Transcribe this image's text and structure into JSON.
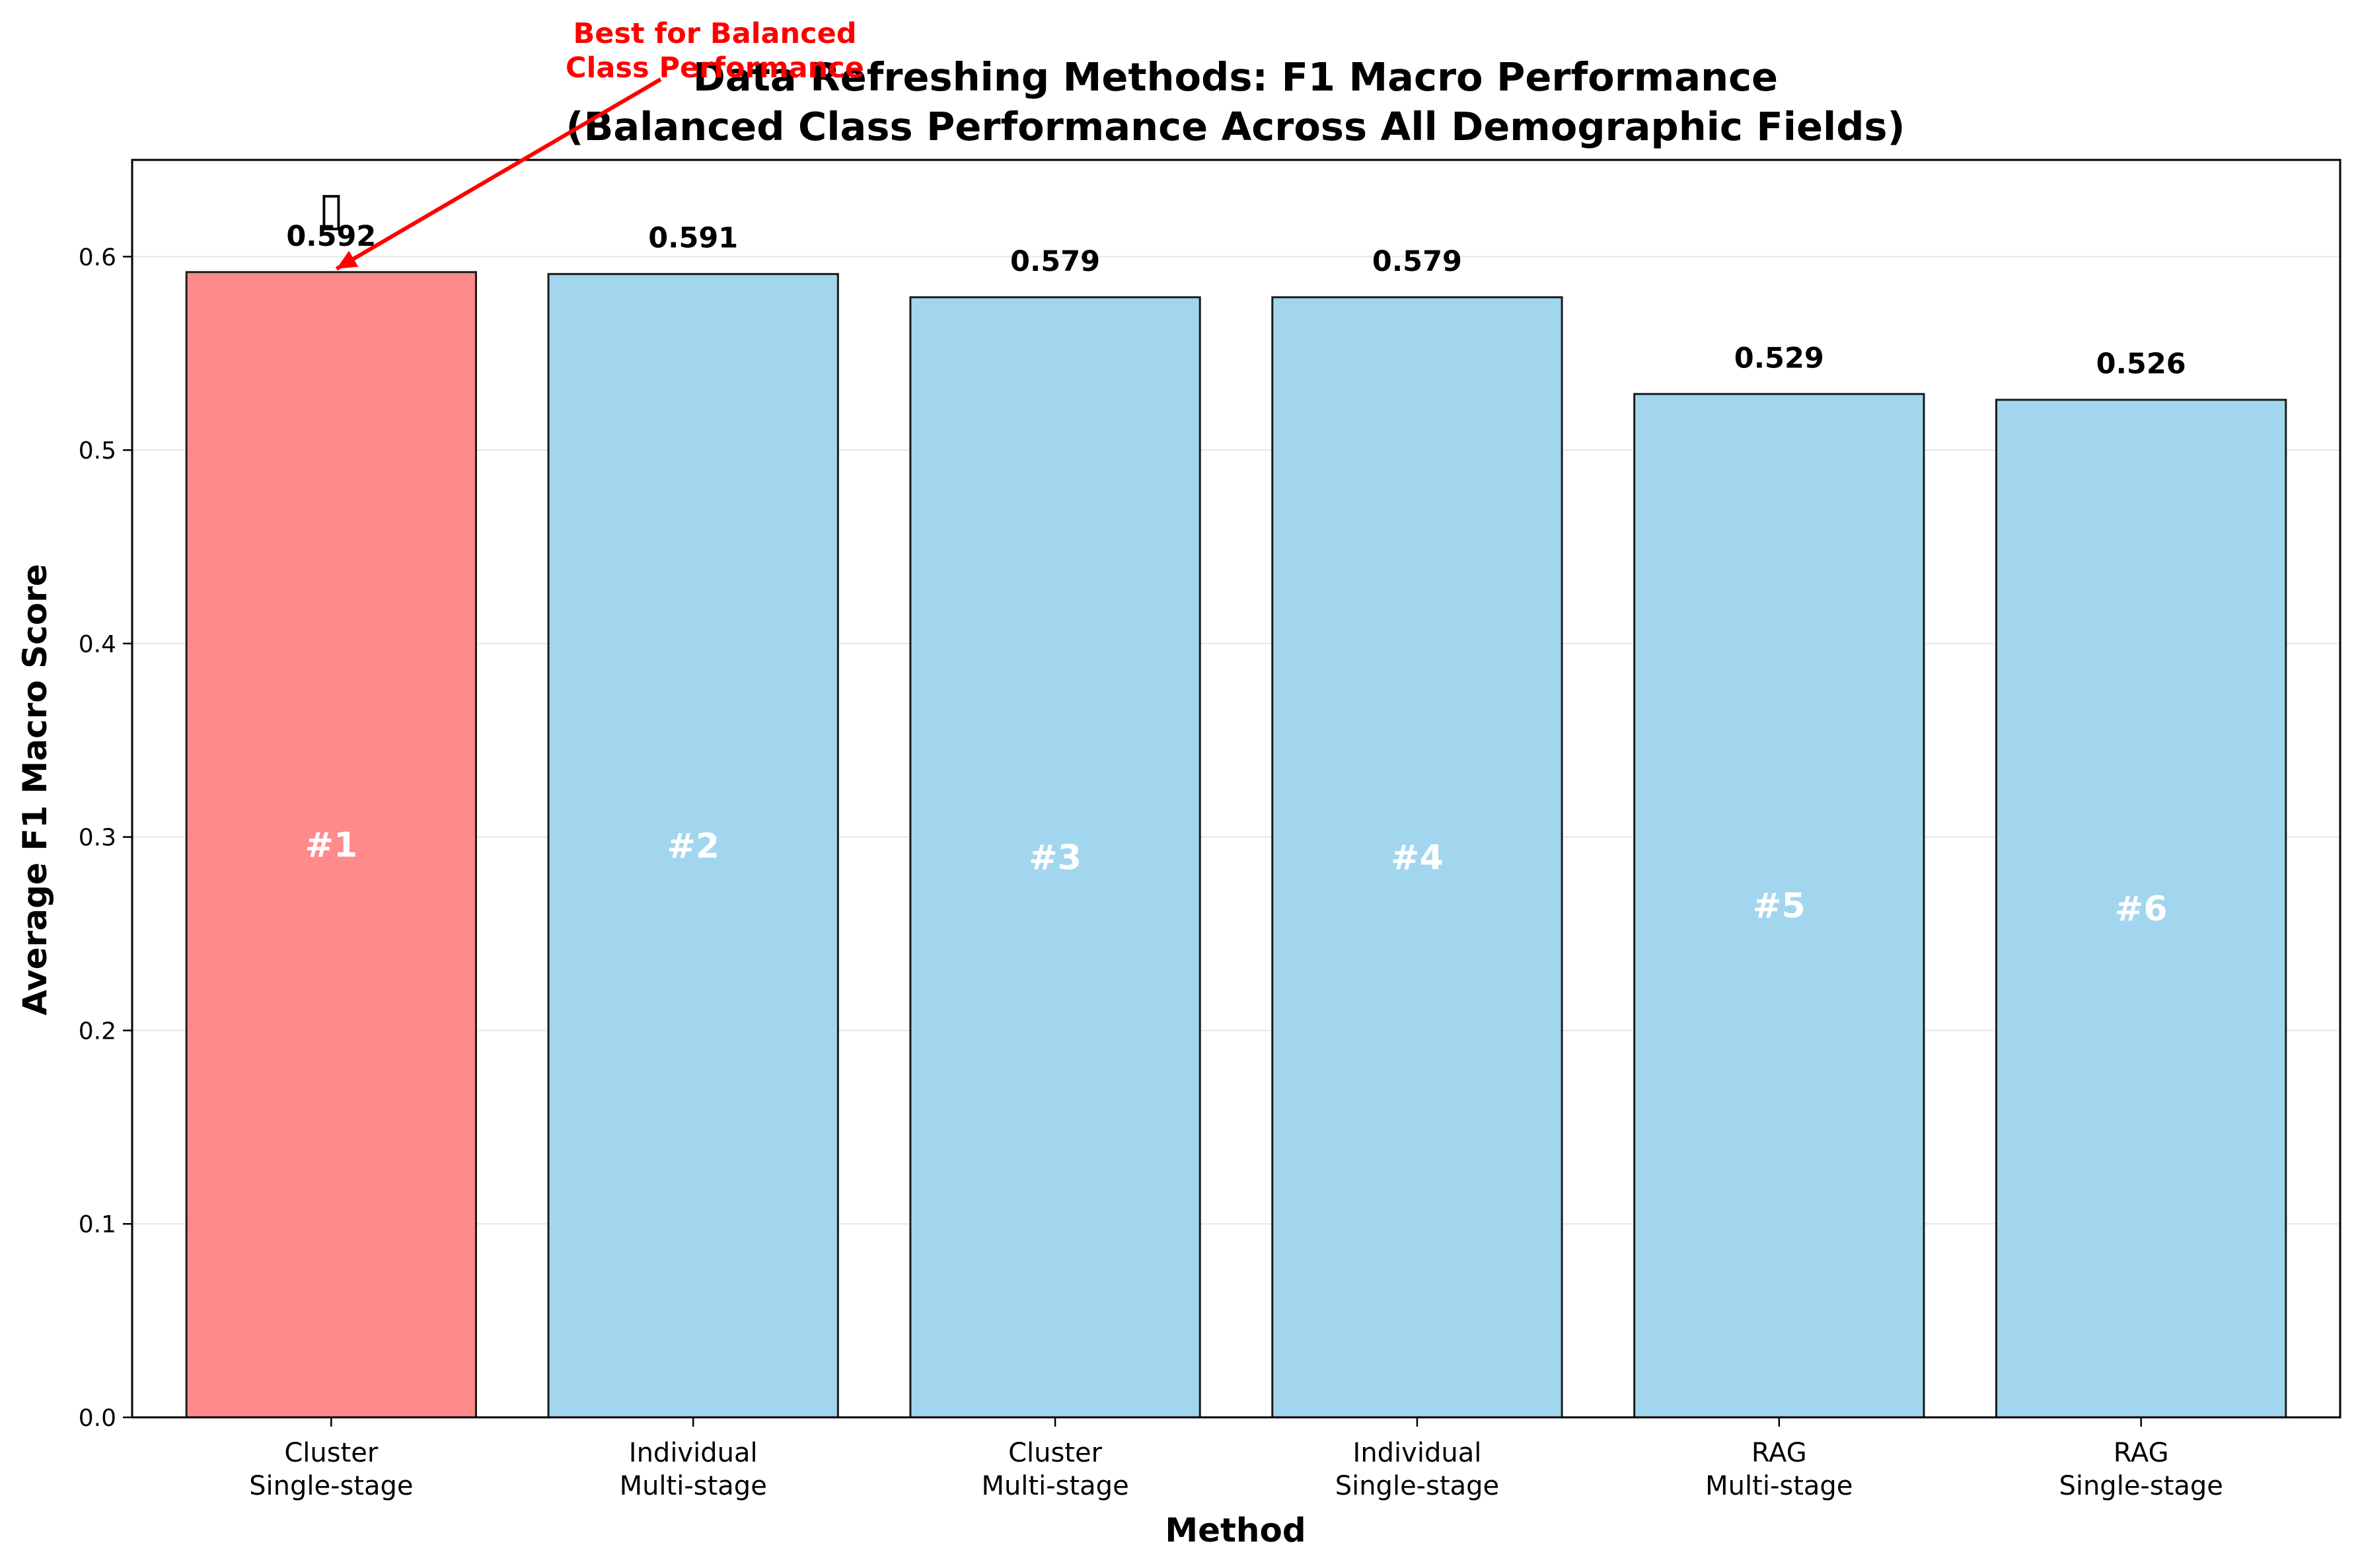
{
  "chart_data": {
    "type": "bar",
    "title": "Data Refreshing Methods: F1 Macro Performance",
    "subtitle": "(Balanced Class Performance Across All Demographic Fields)",
    "xlabel": "Method",
    "ylabel": "Average F1 Macro Score",
    "ylim": [
      0,
      0.65
    ],
    "yticks": [
      0.0,
      0.1,
      0.2,
      0.3,
      0.4,
      0.5,
      0.6
    ],
    "ytick_labels": [
      "0.0",
      "0.1",
      "0.2",
      "0.3",
      "0.4",
      "0.5",
      "0.6"
    ],
    "grid": true,
    "categories": [
      [
        "Cluster",
        "Single-stage"
      ],
      [
        "Individual",
        "Multi-stage"
      ],
      [
        "Cluster",
        "Multi-stage"
      ],
      [
        "Individual",
        "Single-stage"
      ],
      [
        "RAG",
        "Multi-stage"
      ],
      [
        "RAG",
        "Single-stage"
      ]
    ],
    "values": [
      0.592,
      0.591,
      0.579,
      0.579,
      0.529,
      0.526
    ],
    "value_labels": [
      "0.592",
      "0.591",
      "0.579",
      "0.579",
      "0.529",
      "0.526"
    ],
    "rank_labels": [
      "#1",
      "#2",
      "#3",
      "#4",
      "#5",
      "#6"
    ],
    "highlight_index": 0,
    "trophy_glyph": "▯",
    "annotation": {
      "lines": [
        "Best for Balanced",
        "Class Performance"
      ],
      "target_index": 0
    },
    "colors": {
      "highlight_bar": "#ff8a8a",
      "bar": "#a2d6ee",
      "edge": "#1a1a1a",
      "annotation": "#ff0000",
      "rank_text": "#ffffff",
      "grid": "#e6e6e6"
    }
  }
}
